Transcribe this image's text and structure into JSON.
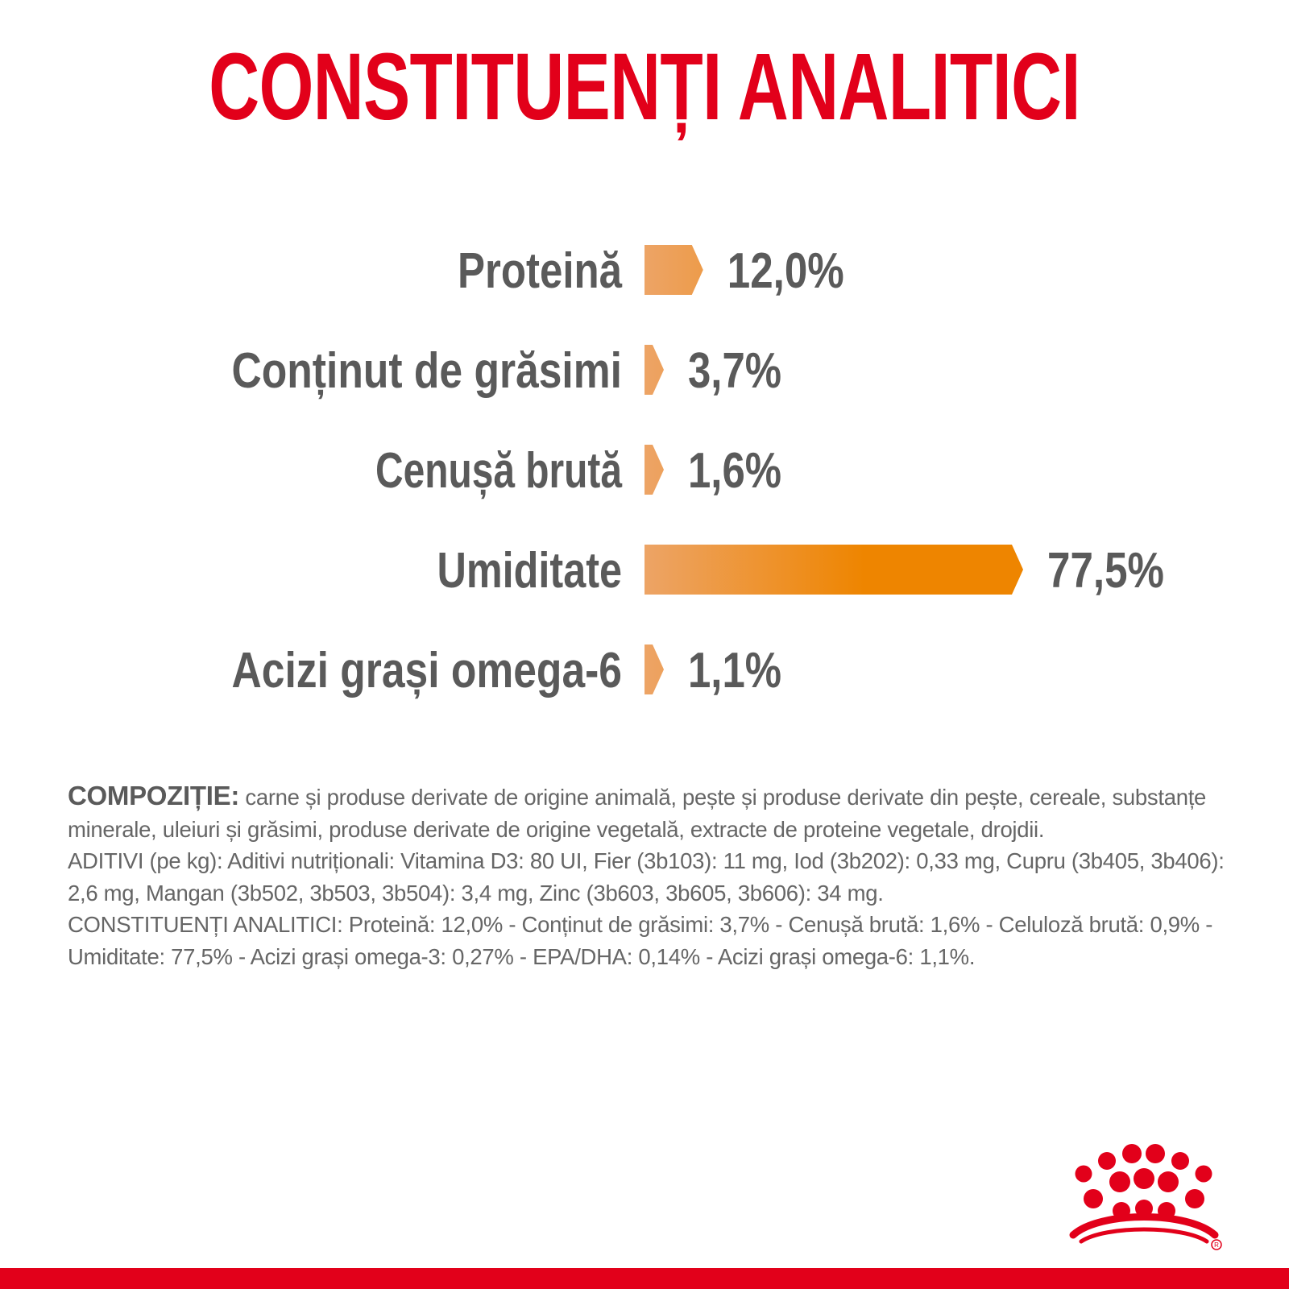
{
  "title": "CONSTITUENȚI ANALITICI",
  "chart_data": {
    "type": "bar",
    "orientation": "horizontal",
    "categories": [
      "Proteină",
      "Conținut de grăsimi",
      "Cenușă brută",
      "Umiditate",
      "Acizi grași omega-6"
    ],
    "values": [
      12.0,
      3.7,
      1.6,
      77.5,
      1.1
    ],
    "value_labels": [
      "12,0%",
      "3,7%",
      "1,6%",
      "77,5%",
      "1,1%"
    ],
    "xlim": [
      0,
      77.5
    ],
    "grid": false,
    "legend": "none"
  },
  "composition": {
    "lead": "COMPOZIȚIE:",
    "ingredients": " carne și produse derivate de origine animală, pește și produse derivate din pește, cereale, substanțe minerale, uleiuri și grăsimi, produse derivate de origine vegetală, extracte de proteine vegetale, drojdii.",
    "additives": "ADITIVI (pe kg): Aditivi nutriționali: Vitamina D3: 80 UI, Fier (3b103): 11 mg, Iod (3b202): 0,33 mg, Cupru (3b405, 3b406): 2,6 mg, Mangan (3b502, 3b503, 3b504): 3,4 mg, Zinc (3b603, 3b605, 3b606): 34 mg.",
    "analytical": "CONSTITUENȚI ANALITICI: Proteină: 12,0% - Conținut de grăsimi: 3,7% - Cenușă brută: 1,6% - Celuloză brută: 0,9% - Umiditate: 77,5% - Acizi grași omega-3: 0,27% - EPA/DHA: 0,14% - Acizi grași omega-6: 1,1%."
  },
  "colors": {
    "title": "#e2001a",
    "text": "#5a5a5a",
    "bar_start": "#eda466",
    "bar_end": "#ee8500",
    "footer": "#e2001a",
    "logo": "#e2001a"
  },
  "logo_icon": "crown-logo-icon"
}
